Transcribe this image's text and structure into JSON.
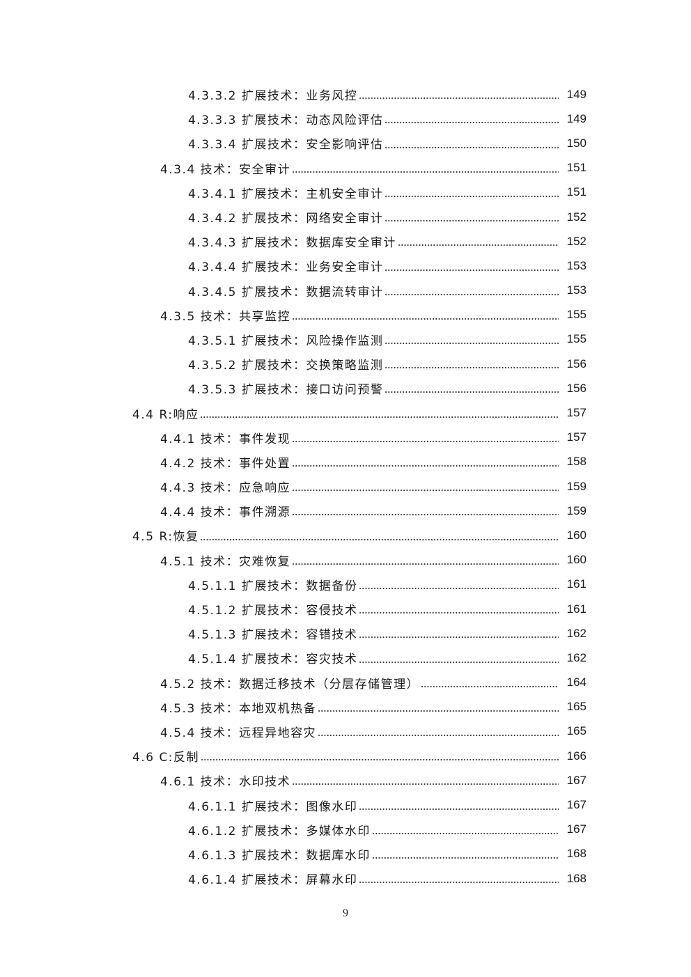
{
  "toc": [
    {
      "level": 3,
      "title": "4.3.3.2 扩展技术：业务风控",
      "page": "149"
    },
    {
      "level": 3,
      "title": "4.3.3.3 扩展技术：动态风险评估",
      "page": "149"
    },
    {
      "level": 3,
      "title": "4.3.3.4 扩展技术：安全影响评估",
      "page": "150"
    },
    {
      "level": 2,
      "title": "4.3.4 技术：安全审计",
      "page": "151"
    },
    {
      "level": 3,
      "title": "4.3.4.1 扩展技术：主机安全审计",
      "page": "151"
    },
    {
      "level": 3,
      "title": "4.3.4.2 扩展技术：网络安全审计",
      "page": "152"
    },
    {
      "level": 3,
      "title": "4.3.4.3 扩展技术：数据库安全审计",
      "page": "152"
    },
    {
      "level": 3,
      "title": "4.3.4.4 扩展技术：业务安全审计",
      "page": "153"
    },
    {
      "level": 3,
      "title": "4.3.4.5 扩展技术：数据流转审计",
      "page": "153"
    },
    {
      "level": 2,
      "title": "4.3.5 技术：共享监控",
      "page": "155"
    },
    {
      "level": 3,
      "title": "4.3.5.1 扩展技术：风险操作监测",
      "page": "155"
    },
    {
      "level": 3,
      "title": "4.3.5.2 扩展技术：交换策略监测",
      "page": "156"
    },
    {
      "level": 3,
      "title": "4.3.5.3 扩展技术：接口访问预警",
      "page": "156"
    },
    {
      "level": 1,
      "title": "4.4 R:响应",
      "page": "157"
    },
    {
      "level": 2,
      "title": "4.4.1 技术：事件发现",
      "page": "157"
    },
    {
      "level": 2,
      "title": "4.4.2 技术：事件处置",
      "page": "158"
    },
    {
      "level": 2,
      "title": "4.4.3 技术：应急响应",
      "page": "159"
    },
    {
      "level": 2,
      "title": "4.4.4 技术：事件溯源",
      "page": "159"
    },
    {
      "level": 1,
      "title": "4.5 R:恢复",
      "page": "160"
    },
    {
      "level": 2,
      "title": "4.5.1 技术：灾难恢复",
      "page": "160"
    },
    {
      "level": 3,
      "title": "4.5.1.1 扩展技术：数据备份",
      "page": "161"
    },
    {
      "level": 3,
      "title": "4.5.1.2 扩展技术：容侵技术",
      "page": "161"
    },
    {
      "level": 3,
      "title": "4.5.1.3 扩展技术：容错技术",
      "page": "162"
    },
    {
      "level": 3,
      "title": "4.5.1.4 扩展技术：容灾技术",
      "page": "162"
    },
    {
      "level": 2,
      "title": "4.5.2 技术：数据迁移技术（分层存储管理）",
      "page": "164"
    },
    {
      "level": 2,
      "title": "4.5.3 技术：本地双机热备",
      "page": "165"
    },
    {
      "level": 2,
      "title": "4.5.4 技术：远程异地容灾",
      "page": "165"
    },
    {
      "level": 1,
      "title": "4.6 C:反制",
      "page": "166"
    },
    {
      "level": 2,
      "title": "4.6.1 技术：水印技术",
      "page": "167"
    },
    {
      "level": 3,
      "title": "4.6.1.1 扩展技术：图像水印",
      "page": "167"
    },
    {
      "level": 3,
      "title": "4.6.1.2 扩展技术：多媒体水印",
      "page": "167"
    },
    {
      "level": 3,
      "title": "4.6.1.3 扩展技术：数据库水印",
      "page": "168"
    },
    {
      "level": 3,
      "title": "4.6.1.4 扩展技术：屏幕水印",
      "page": "168"
    }
  ],
  "footer": {
    "page_number": "9"
  }
}
